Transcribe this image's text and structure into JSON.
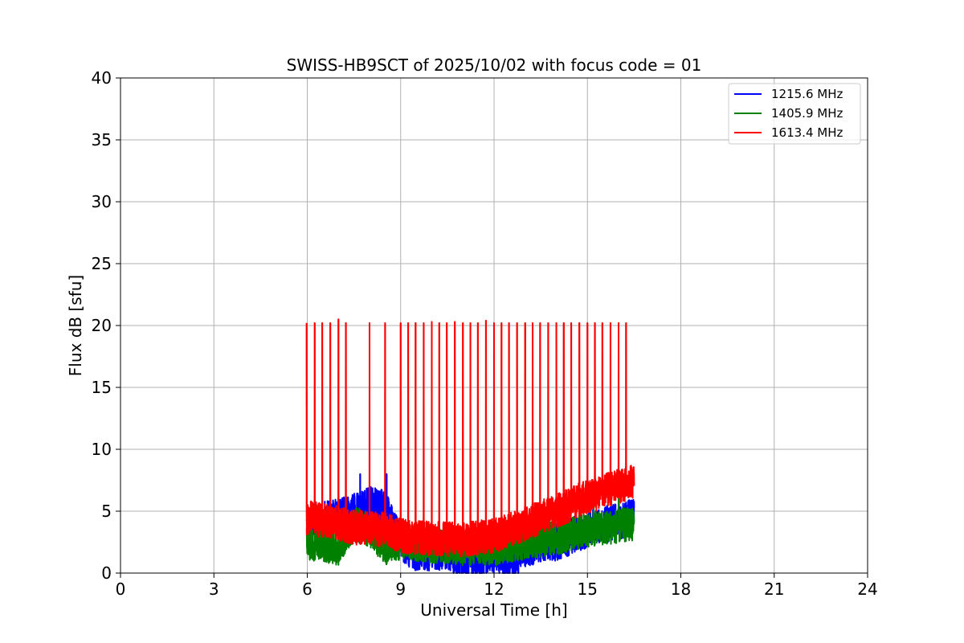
{
  "chart_data": {
    "type": "line",
    "title": "SWISS-HB9SCT of 2025/10/02 with focus code = 01",
    "xlabel": "Universal Time [h]",
    "ylabel": "Flux dB [sfu]",
    "xlim": [
      0,
      24
    ],
    "ylim": [
      0,
      40
    ],
    "xticks": [
      0,
      3,
      6,
      9,
      12,
      15,
      18,
      21,
      24
    ],
    "yticks": [
      0,
      5,
      10,
      15,
      20,
      25,
      30,
      35,
      40
    ],
    "grid": true,
    "legend_position": "top-right",
    "t_start": 5.98,
    "t_end": 16.5,
    "series": [
      {
        "name": "1215.6 MHz",
        "color": "#0000ff",
        "baseline": [
          [
            6.0,
            4.0
          ],
          [
            7.0,
            4.5
          ],
          [
            7.6,
            5.0
          ],
          [
            8.0,
            5.5
          ],
          [
            8.5,
            5.2
          ],
          [
            9.0,
            2.5
          ],
          [
            9.5,
            1.5
          ],
          [
            10.5,
            1.8
          ],
          [
            11.0,
            1.0
          ],
          [
            12.0,
            1.5
          ],
          [
            12.6,
            0.8
          ],
          [
            13.0,
            2.0
          ],
          [
            14.0,
            2.5
          ],
          [
            15.0,
            3.5
          ],
          [
            16.0,
            4.2
          ],
          [
            16.5,
            4.5
          ]
        ],
        "noise": 1.5,
        "spikes": [
          [
            7.7,
            8.0
          ],
          [
            8.0,
            5.9
          ],
          [
            8.55,
            8.0
          ]
        ]
      },
      {
        "name": "1405.9 MHz",
        "color": "#008000",
        "baseline": [
          [
            6.0,
            2.5
          ],
          [
            7.0,
            2.0
          ],
          [
            7.5,
            4.0
          ],
          [
            8.0,
            3.5
          ],
          [
            8.5,
            2.0
          ],
          [
            9.0,
            2.5
          ],
          [
            10.0,
            2.2
          ],
          [
            11.0,
            2.0
          ],
          [
            12.0,
            2.0
          ],
          [
            13.0,
            2.5
          ],
          [
            14.0,
            2.8
          ],
          [
            15.0,
            3.5
          ],
          [
            16.0,
            3.8
          ],
          [
            16.5,
            4.0
          ]
        ],
        "noise": 1.4,
        "spikes": [
          [
            15.2,
            5.5
          ],
          [
            16.0,
            6.0
          ]
        ]
      },
      {
        "name": "1613.4 MHz",
        "color": "#ff0000",
        "baseline": [
          [
            6.0,
            4.5
          ],
          [
            7.0,
            4.0
          ],
          [
            7.5,
            3.7
          ],
          [
            8.0,
            3.6
          ],
          [
            8.5,
            3.5
          ],
          [
            9.0,
            3.0
          ],
          [
            10.0,
            2.8
          ],
          [
            11.0,
            2.7
          ],
          [
            12.0,
            3.0
          ],
          [
            13.0,
            4.0
          ],
          [
            14.0,
            5.0
          ],
          [
            15.0,
            6.2
          ],
          [
            16.0,
            7.0
          ],
          [
            16.5,
            7.4
          ]
        ],
        "noise": 1.4,
        "spikes": [
          [
            5.98,
            20.2
          ],
          [
            6.24,
            20.2
          ],
          [
            6.48,
            20.2
          ],
          [
            6.74,
            20.2
          ],
          [
            7.0,
            20.5
          ],
          [
            7.24,
            20.2
          ],
          [
            8.0,
            20.2
          ],
          [
            8.5,
            20.2
          ],
          [
            9.0,
            20.2
          ],
          [
            9.24,
            20.2
          ],
          [
            9.48,
            20.2
          ],
          [
            9.74,
            20.2
          ],
          [
            10.0,
            20.3
          ],
          [
            10.24,
            20.2
          ],
          [
            10.48,
            20.2
          ],
          [
            10.74,
            20.3
          ],
          [
            11.0,
            20.2
          ],
          [
            11.24,
            20.2
          ],
          [
            11.48,
            20.2
          ],
          [
            11.74,
            20.4
          ],
          [
            12.0,
            20.2
          ],
          [
            12.24,
            20.2
          ],
          [
            12.48,
            20.2
          ],
          [
            12.74,
            20.2
          ],
          [
            13.0,
            20.2
          ],
          [
            13.24,
            20.2
          ],
          [
            13.48,
            20.2
          ],
          [
            13.74,
            20.2
          ],
          [
            14.0,
            20.2
          ],
          [
            14.24,
            20.2
          ],
          [
            14.48,
            20.2
          ],
          [
            14.74,
            20.2
          ],
          [
            15.0,
            20.2
          ],
          [
            15.24,
            20.2
          ],
          [
            15.48,
            20.2
          ],
          [
            15.74,
            20.2
          ],
          [
            16.0,
            20.2
          ],
          [
            16.24,
            20.2
          ]
        ]
      }
    ]
  }
}
